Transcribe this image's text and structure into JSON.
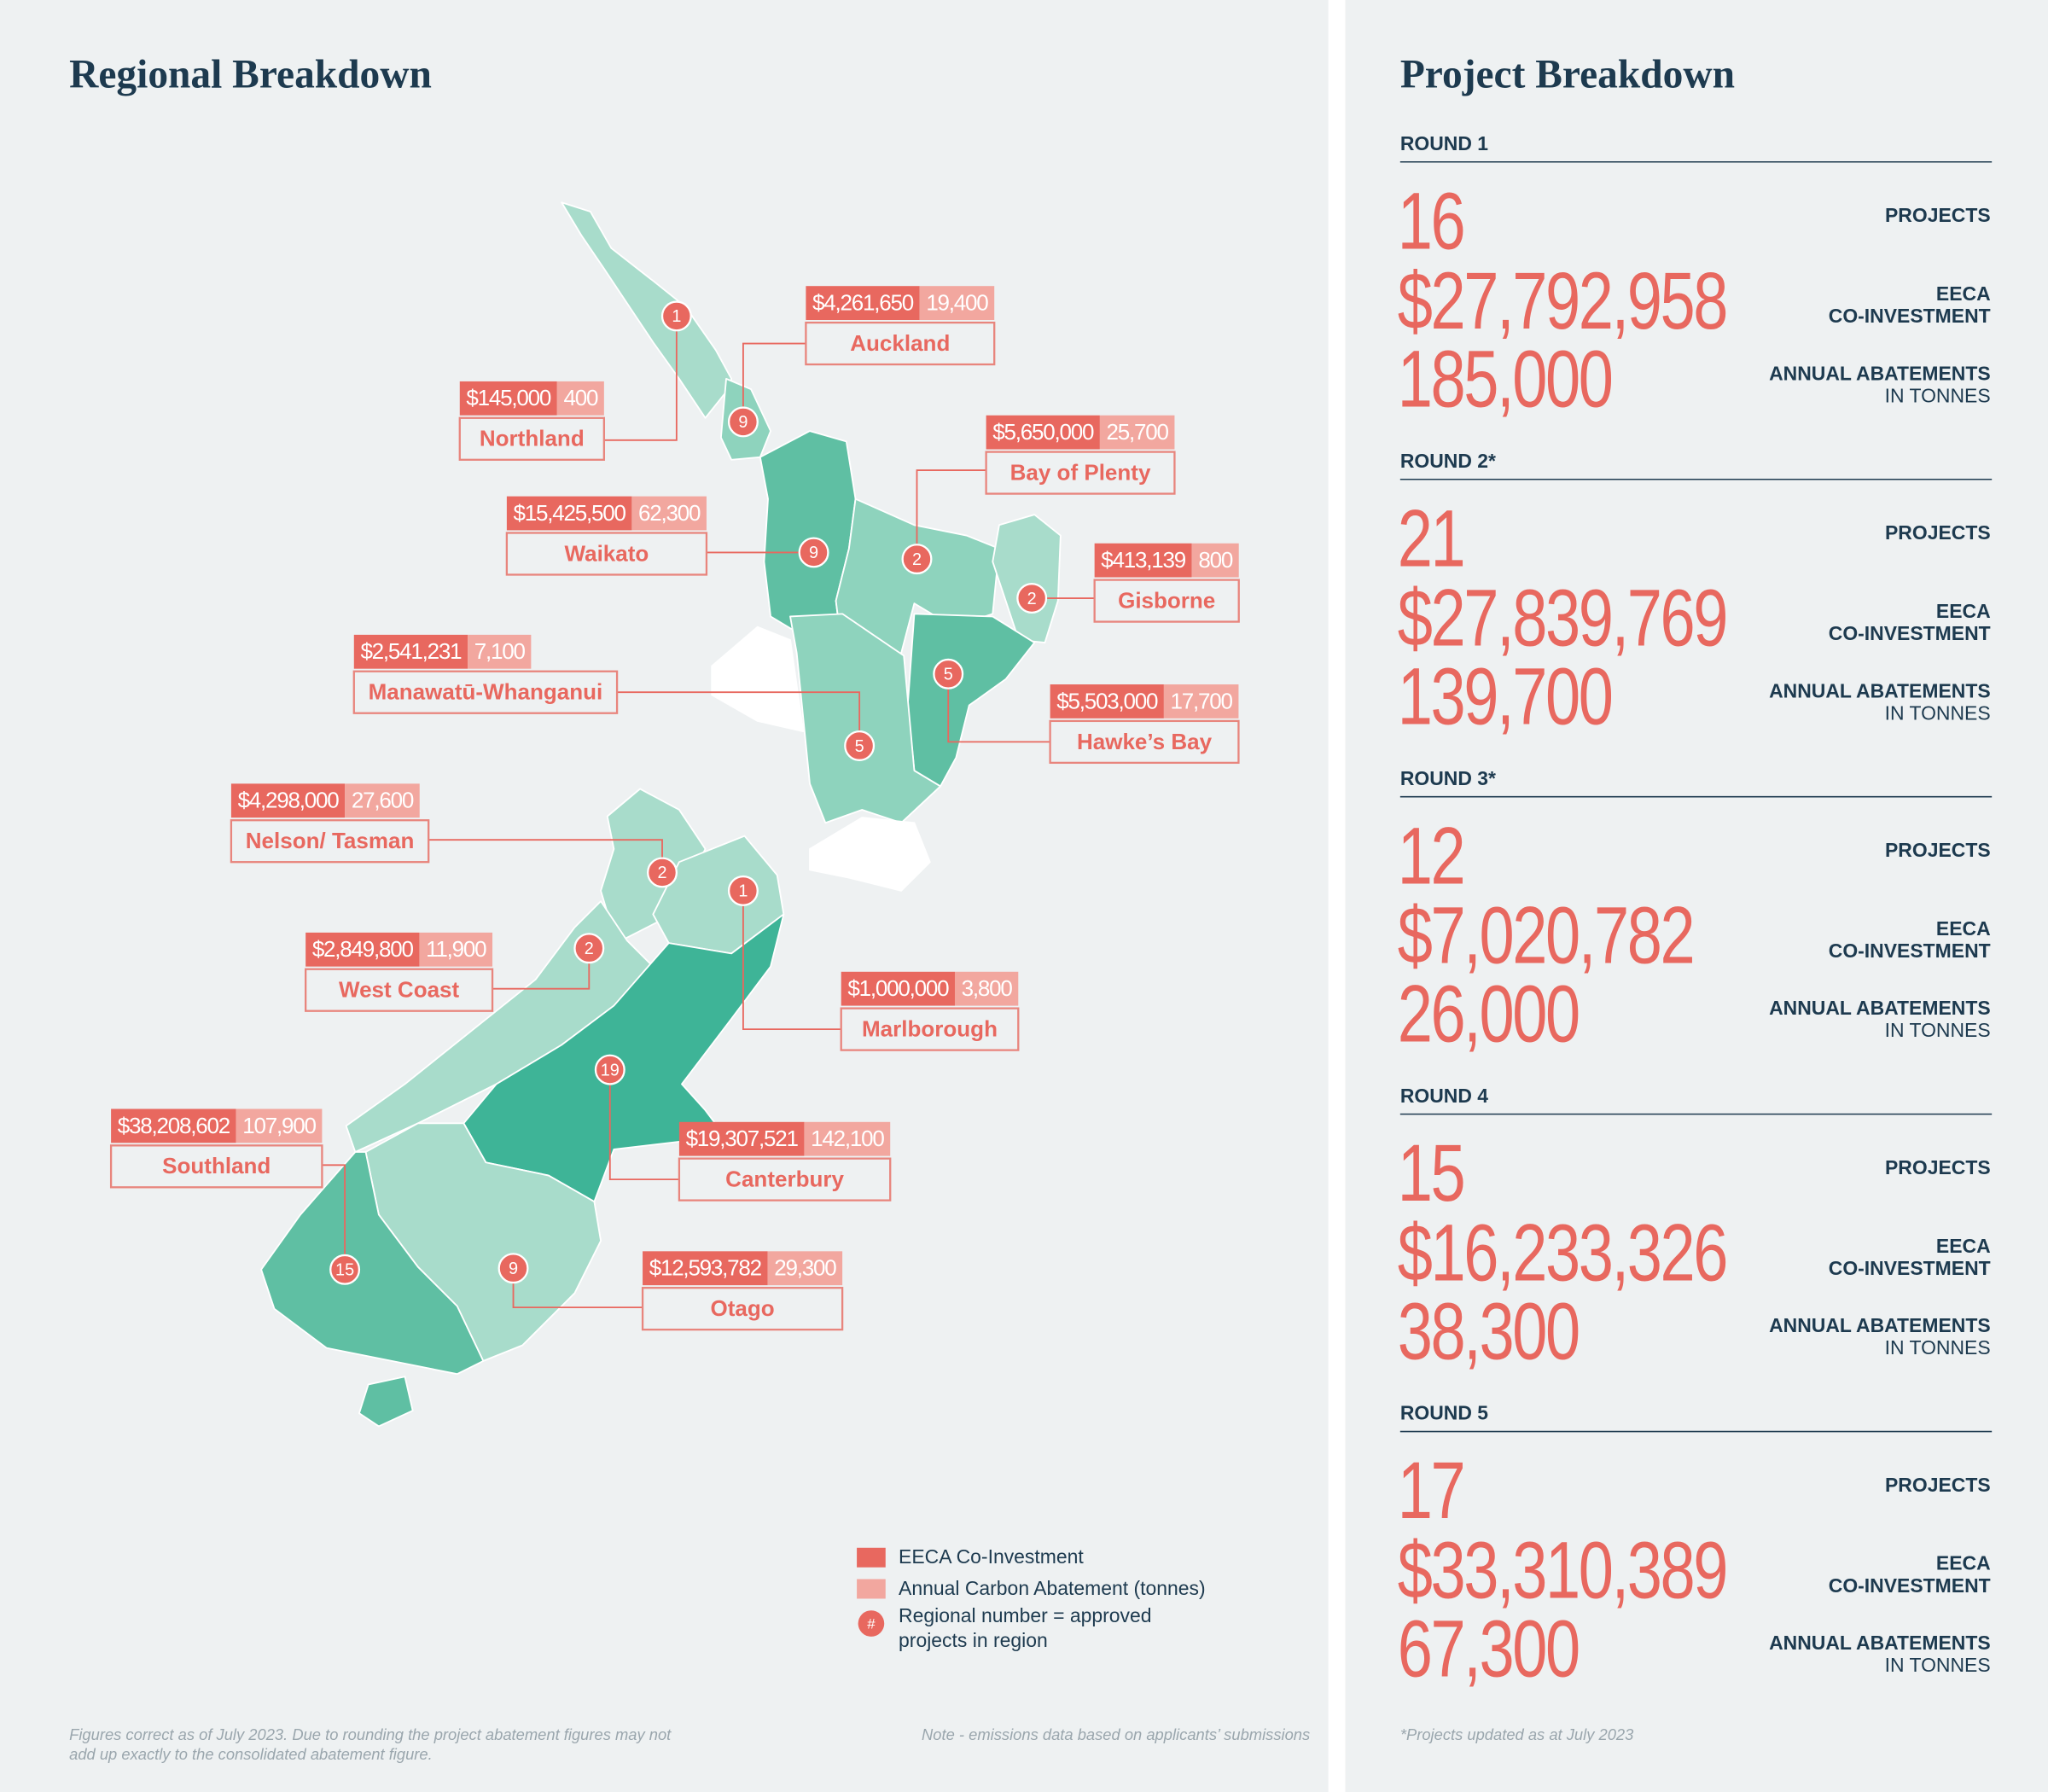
{
  "regional": {
    "title": "Regional Breakdown",
    "regions": [
      {
        "name": "Auckland",
        "investment": "$4,261,650",
        "abatement": "19,400",
        "projects": "9"
      },
      {
        "name": "Northland",
        "investment": "$145,000",
        "abatement": "400",
        "projects": "1"
      },
      {
        "name": "Bay of Plenty",
        "investment": "$5,650,000",
        "abatement": "25,700",
        "projects": "2"
      },
      {
        "name": "Waikato",
        "investment": "$15,425,500",
        "abatement": "62,300",
        "projects": "9"
      },
      {
        "name": "Gisborne",
        "investment": "$413,139",
        "abatement": "800",
        "projects": "2"
      },
      {
        "name": "Manawatū-Whanganui",
        "investment": "$2,541,231",
        "abatement": "7,100",
        "projects": "5"
      },
      {
        "name": "Hawke’s Bay",
        "investment": "$5,503,000",
        "abatement": "17,700",
        "projects": "5"
      },
      {
        "name": "Nelson/ Tasman",
        "investment": "$4,298,000",
        "abatement": "27,600",
        "projects": "2"
      },
      {
        "name": "West Coast",
        "investment": "$2,849,800",
        "abatement": "11,900",
        "projects": "2"
      },
      {
        "name": "Marlborough",
        "investment": "$1,000,000",
        "abatement": "3,800",
        "projects": "1"
      },
      {
        "name": "Southland",
        "investment": "$38,208,602",
        "abatement": "107,900",
        "projects": "15"
      },
      {
        "name": "Canterbury",
        "investment": "$19,307,521",
        "abatement": "142,100",
        "projects": "19"
      },
      {
        "name": "Otago",
        "investment": "$12,593,782",
        "abatement": "29,300",
        "projects": "9"
      }
    ],
    "legend": {
      "investment": "EECA Co-Investment",
      "abatement": "Annual Carbon Abatement (tonnes)",
      "marker": "#",
      "number": [
        "Regional number = approved",
        "projects in region"
      ]
    },
    "footnote": [
      "Figures correct as of July 2023. Due to rounding the project abatement figures may not",
      "add up exactly to the consolidated abatement figure."
    ],
    "note": "Note - emissions data based on applicants’ submissions"
  },
  "projects": {
    "title": "Project Breakdown",
    "labels": {
      "projects": "PROJECTS",
      "eeca": [
        "EECA",
        "CO-INVESTMENT"
      ],
      "abatement": [
        "ANNUAL ABATEMENTS",
        "IN TONNES"
      ]
    },
    "rounds": [
      {
        "label": "ROUND 1",
        "projects": "16",
        "investment": "$27,792,958",
        "abatement": "185,000"
      },
      {
        "label": "ROUND 2*",
        "projects": "21",
        "investment": "$27,839,769",
        "abatement": "139,700"
      },
      {
        "label": "ROUND 3*",
        "projects": "12",
        "investment": "$7,020,782",
        "abatement": "26,000"
      },
      {
        "label": "ROUND 4",
        "projects": "15",
        "investment": "$16,233,326",
        "abatement": "38,300"
      },
      {
        "label": "ROUND 5",
        "projects": "17",
        "investment": "$33,310,389",
        "abatement": "67,300"
      }
    ],
    "footnote": "*Projects updated as at July 2023"
  }
}
